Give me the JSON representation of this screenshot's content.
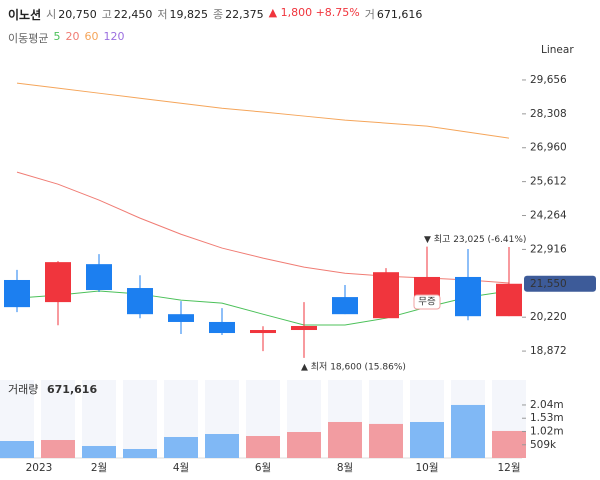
{
  "header": {
    "name": "이노션",
    "quotes": [
      {
        "label": "시",
        "value": "20,750"
      },
      {
        "label": "고",
        "value": "22,450"
      },
      {
        "label": "저",
        "value": "19,825"
      },
      {
        "label": "종",
        "value": "22,375"
      }
    ],
    "change": "▲ 1,800 +8.75%",
    "volume": {
      "label": "거",
      "value": "671,616"
    }
  },
  "chart_data": [
    {
      "type": "candlestick",
      "scale_label": "Linear",
      "legend_title": "이동평균",
      "categories": [
        null,
        "2023",
        "2월",
        null,
        "4월",
        null,
        "6월",
        null,
        "8월",
        null,
        "10월",
        null,
        "12월"
      ],
      "open": [
        21700,
        20820,
        22330,
        21380,
        20340,
        20030,
        19590,
        19710,
        21020,
        20180,
        21060,
        21820,
        20260
      ],
      "high": [
        22100,
        22450,
        22730,
        21890,
        20860,
        20580,
        19860,
        20820,
        21500,
        22170,
        23025,
        22930,
        23010
      ],
      "low": [
        20420,
        19900,
        21220,
        20180,
        19550,
        19510,
        18870,
        18600,
        20340,
        20180,
        21060,
        20100,
        20260
      ],
      "close": [
        20620,
        22410,
        21300,
        20340,
        20030,
        19590,
        19710,
        19870,
        20340,
        22010,
        21820,
        20260,
        21550
      ],
      "up_color": "#f0353d",
      "down_color": "#1c7ff0",
      "series": [
        {
          "name": "5",
          "color": "#4cc15a",
          "values": [
            20980,
            21100,
            21260,
            21140,
            20900,
            20780,
            20340,
            19910,
            19910,
            20180,
            20620,
            21020,
            21260
          ]
        },
        {
          "name": "20",
          "color": "#f07c74",
          "values": [
            25990,
            25510,
            24880,
            24160,
            23520,
            22970,
            22570,
            22210,
            21970,
            21850,
            21780,
            21700,
            21580
          ]
        },
        {
          "name": "60",
          "color": "#f5a55a",
          "values": [
            29530,
            29330,
            29130,
            28930,
            28730,
            28530,
            28380,
            28220,
            28060,
            27940,
            27820,
            27580,
            27340
          ]
        },
        {
          "name": "120",
          "color": "#9b6fe0",
          "values": [
            null,
            null,
            null,
            null,
            null,
            null,
            null,
            null,
            null,
            null,
            null,
            null,
            null
          ]
        }
      ],
      "ylim": [
        18040,
        30450
      ],
      "yticks": [
        {
          "value": 18872,
          "label": "18,872"
        },
        {
          "value": 20220,
          "label": "20,220"
        },
        {
          "value": 22916,
          "label": "22,916"
        },
        {
          "value": 24264,
          "label": "24,264"
        },
        {
          "value": 25612,
          "label": "25,612"
        },
        {
          "value": 26960,
          "label": "26,960"
        },
        {
          "value": 28308,
          "label": "28,308"
        },
        {
          "value": 29656,
          "label": "29,656"
        }
      ],
      "current_price": {
        "value": 21550,
        "label": "21,550"
      },
      "high_label": "▼ 최고 23,025 (-6.41%)",
      "low_label": "▲ 최저 18,600 (15.86%)",
      "event_label": "무증"
    },
    {
      "type": "bar",
      "title": "거래량",
      "title_value": "671,616",
      "values": [
        654000,
        692000,
        462000,
        346000,
        808000,
        923000,
        846000,
        1000000,
        1385000,
        1310000,
        1385000,
        2040000,
        1040000
      ],
      "colors": [
        "#80b8f5",
        "#f29ca1",
        "#80b8f5",
        "#80b8f5",
        "#80b8f5",
        "#80b8f5",
        "#f29ca1",
        "#f29ca1",
        "#f29ca1",
        "#f29ca1",
        "#80b8f5",
        "#80b8f5",
        "#f29ca1"
      ],
      "ylim": [
        0,
        3000000
      ],
      "yticks": [
        {
          "value": 509000,
          "label": "509k"
        },
        {
          "value": 1020000,
          "label": "1.02m"
        },
        {
          "value": 1530000,
          "label": "1.53m"
        },
        {
          "value": 2040000,
          "label": "2.04m"
        }
      ]
    }
  ]
}
